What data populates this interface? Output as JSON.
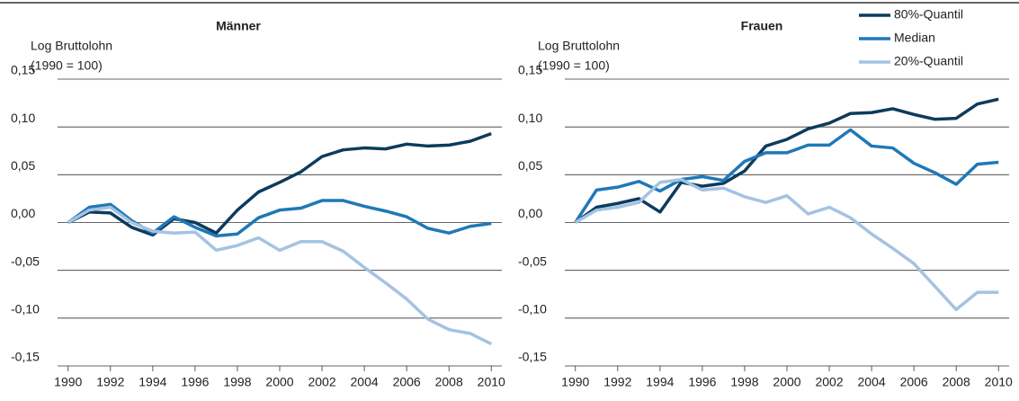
{
  "chart_data": [
    {
      "type": "line",
      "title": "Männer",
      "ylabel": [
        "Log Bruttolohn",
        "(1990 = 100)"
      ],
      "x": [
        1990,
        1991,
        1992,
        1993,
        1994,
        1995,
        1996,
        1997,
        1998,
        1999,
        2000,
        2001,
        2002,
        2003,
        2004,
        2005,
        2006,
        2007,
        2008,
        2009,
        2010
      ],
      "series": [
        {
          "color": "#0d3b5c",
          "values": [
            0,
            0.011,
            0.01,
            -0.005,
            -0.013,
            0.004,
            0.0,
            -0.011,
            0.013,
            0.032,
            0.042,
            0.053,
            0.069,
            0.076,
            0.078,
            0.077,
            0.082,
            0.08,
            0.081,
            0.085,
            0.093
          ]
        },
        {
          "color": "#1f78b8",
          "values": [
            0,
            0.016,
            0.019,
            0.002,
            -0.011,
            0.006,
            -0.005,
            -0.014,
            -0.012,
            0.005,
            0.013,
            0.015,
            0.023,
            0.023,
            0.017,
            0.012,
            0.006,
            -0.006,
            -0.011,
            -0.004,
            -0.001
          ]
        },
        {
          "color": "#a4c3e2",
          "values": [
            0,
            0.013,
            0.016,
            0.0,
            -0.009,
            -0.011,
            -0.01,
            -0.029,
            -0.024,
            -0.016,
            -0.029,
            -0.02,
            -0.02,
            -0.03,
            -0.047,
            -0.063,
            -0.08,
            -0.101,
            -0.112,
            -0.116,
            -0.127
          ]
        }
      ],
      "xlim": [
        1989.5,
        2010.5
      ],
      "xticks": [
        1990,
        1992,
        1994,
        1996,
        1998,
        2000,
        2002,
        2004,
        2006,
        2008,
        2010
      ],
      "ylim": [
        -0.15,
        0.15
      ],
      "yticks": [
        {
          "value": -0.15,
          "label": "-0,15"
        },
        {
          "value": -0.1,
          "label": "-0,10"
        },
        {
          "value": -0.05,
          "label": "-0,05"
        },
        {
          "value": 0,
          "label": "0,00"
        },
        {
          "value": 0.05,
          "label": "0,05"
        },
        {
          "value": 0.1,
          "label": "0,10"
        },
        {
          "value": 0.15,
          "label": "0,15"
        }
      ],
      "grid": true
    },
    {
      "type": "line",
      "title": "Frauen",
      "ylabel": [
        "Log Bruttolohn",
        "(1990 = 100)"
      ],
      "x": [
        1990,
        1991,
        1992,
        1993,
        1994,
        1995,
        1996,
        1997,
        1998,
        1999,
        2000,
        2001,
        2002,
        2003,
        2004,
        2005,
        2006,
        2007,
        2008,
        2009,
        2010
      ],
      "series": [
        {
          "name": "80%-Quantil",
          "color": "#0d3b5c",
          "values": [
            0,
            0.016,
            0.02,
            0.025,
            0.011,
            0.042,
            0.038,
            0.041,
            0.054,
            0.08,
            0.087,
            0.098,
            0.104,
            0.114,
            0.115,
            0.119,
            0.113,
            0.108,
            0.109,
            0.124,
            0.129
          ]
        },
        {
          "name": "Median",
          "color": "#1f78b8",
          "values": [
            0,
            0.034,
            0.037,
            0.043,
            0.033,
            0.045,
            0.048,
            0.044,
            0.064,
            0.073,
            0.073,
            0.081,
            0.081,
            0.097,
            0.08,
            0.078,
            0.062,
            0.052,
            0.04,
            0.061,
            0.063
          ]
        },
        {
          "name": "20%-Quantil",
          "color": "#a4c3e2",
          "values": [
            0,
            0.013,
            0.016,
            0.021,
            0.042,
            0.045,
            0.034,
            0.036,
            0.027,
            0.021,
            0.028,
            0.009,
            0.016,
            0.005,
            -0.012,
            -0.027,
            -0.043,
            -0.067,
            -0.091,
            -0.073,
            -0.073
          ]
        }
      ],
      "xlim": [
        1989.5,
        2010.5
      ],
      "xticks": [
        1990,
        1992,
        1994,
        1996,
        1998,
        2000,
        2002,
        2004,
        2006,
        2008,
        2010
      ],
      "ylim": [
        -0.15,
        0.15
      ],
      "yticks": [
        {
          "value": -0.15,
          "label": "-0,15"
        },
        {
          "value": -0.1,
          "label": "-0,10"
        },
        {
          "value": -0.05,
          "label": "-0,05"
        },
        {
          "value": 0,
          "label": "0,00"
        },
        {
          "value": 0.05,
          "label": "0,05"
        },
        {
          "value": 0.1,
          "label": "0,10"
        },
        {
          "value": 0.15,
          "label": "0,15"
        }
      ],
      "grid": true,
      "legend": "top-right"
    }
  ]
}
